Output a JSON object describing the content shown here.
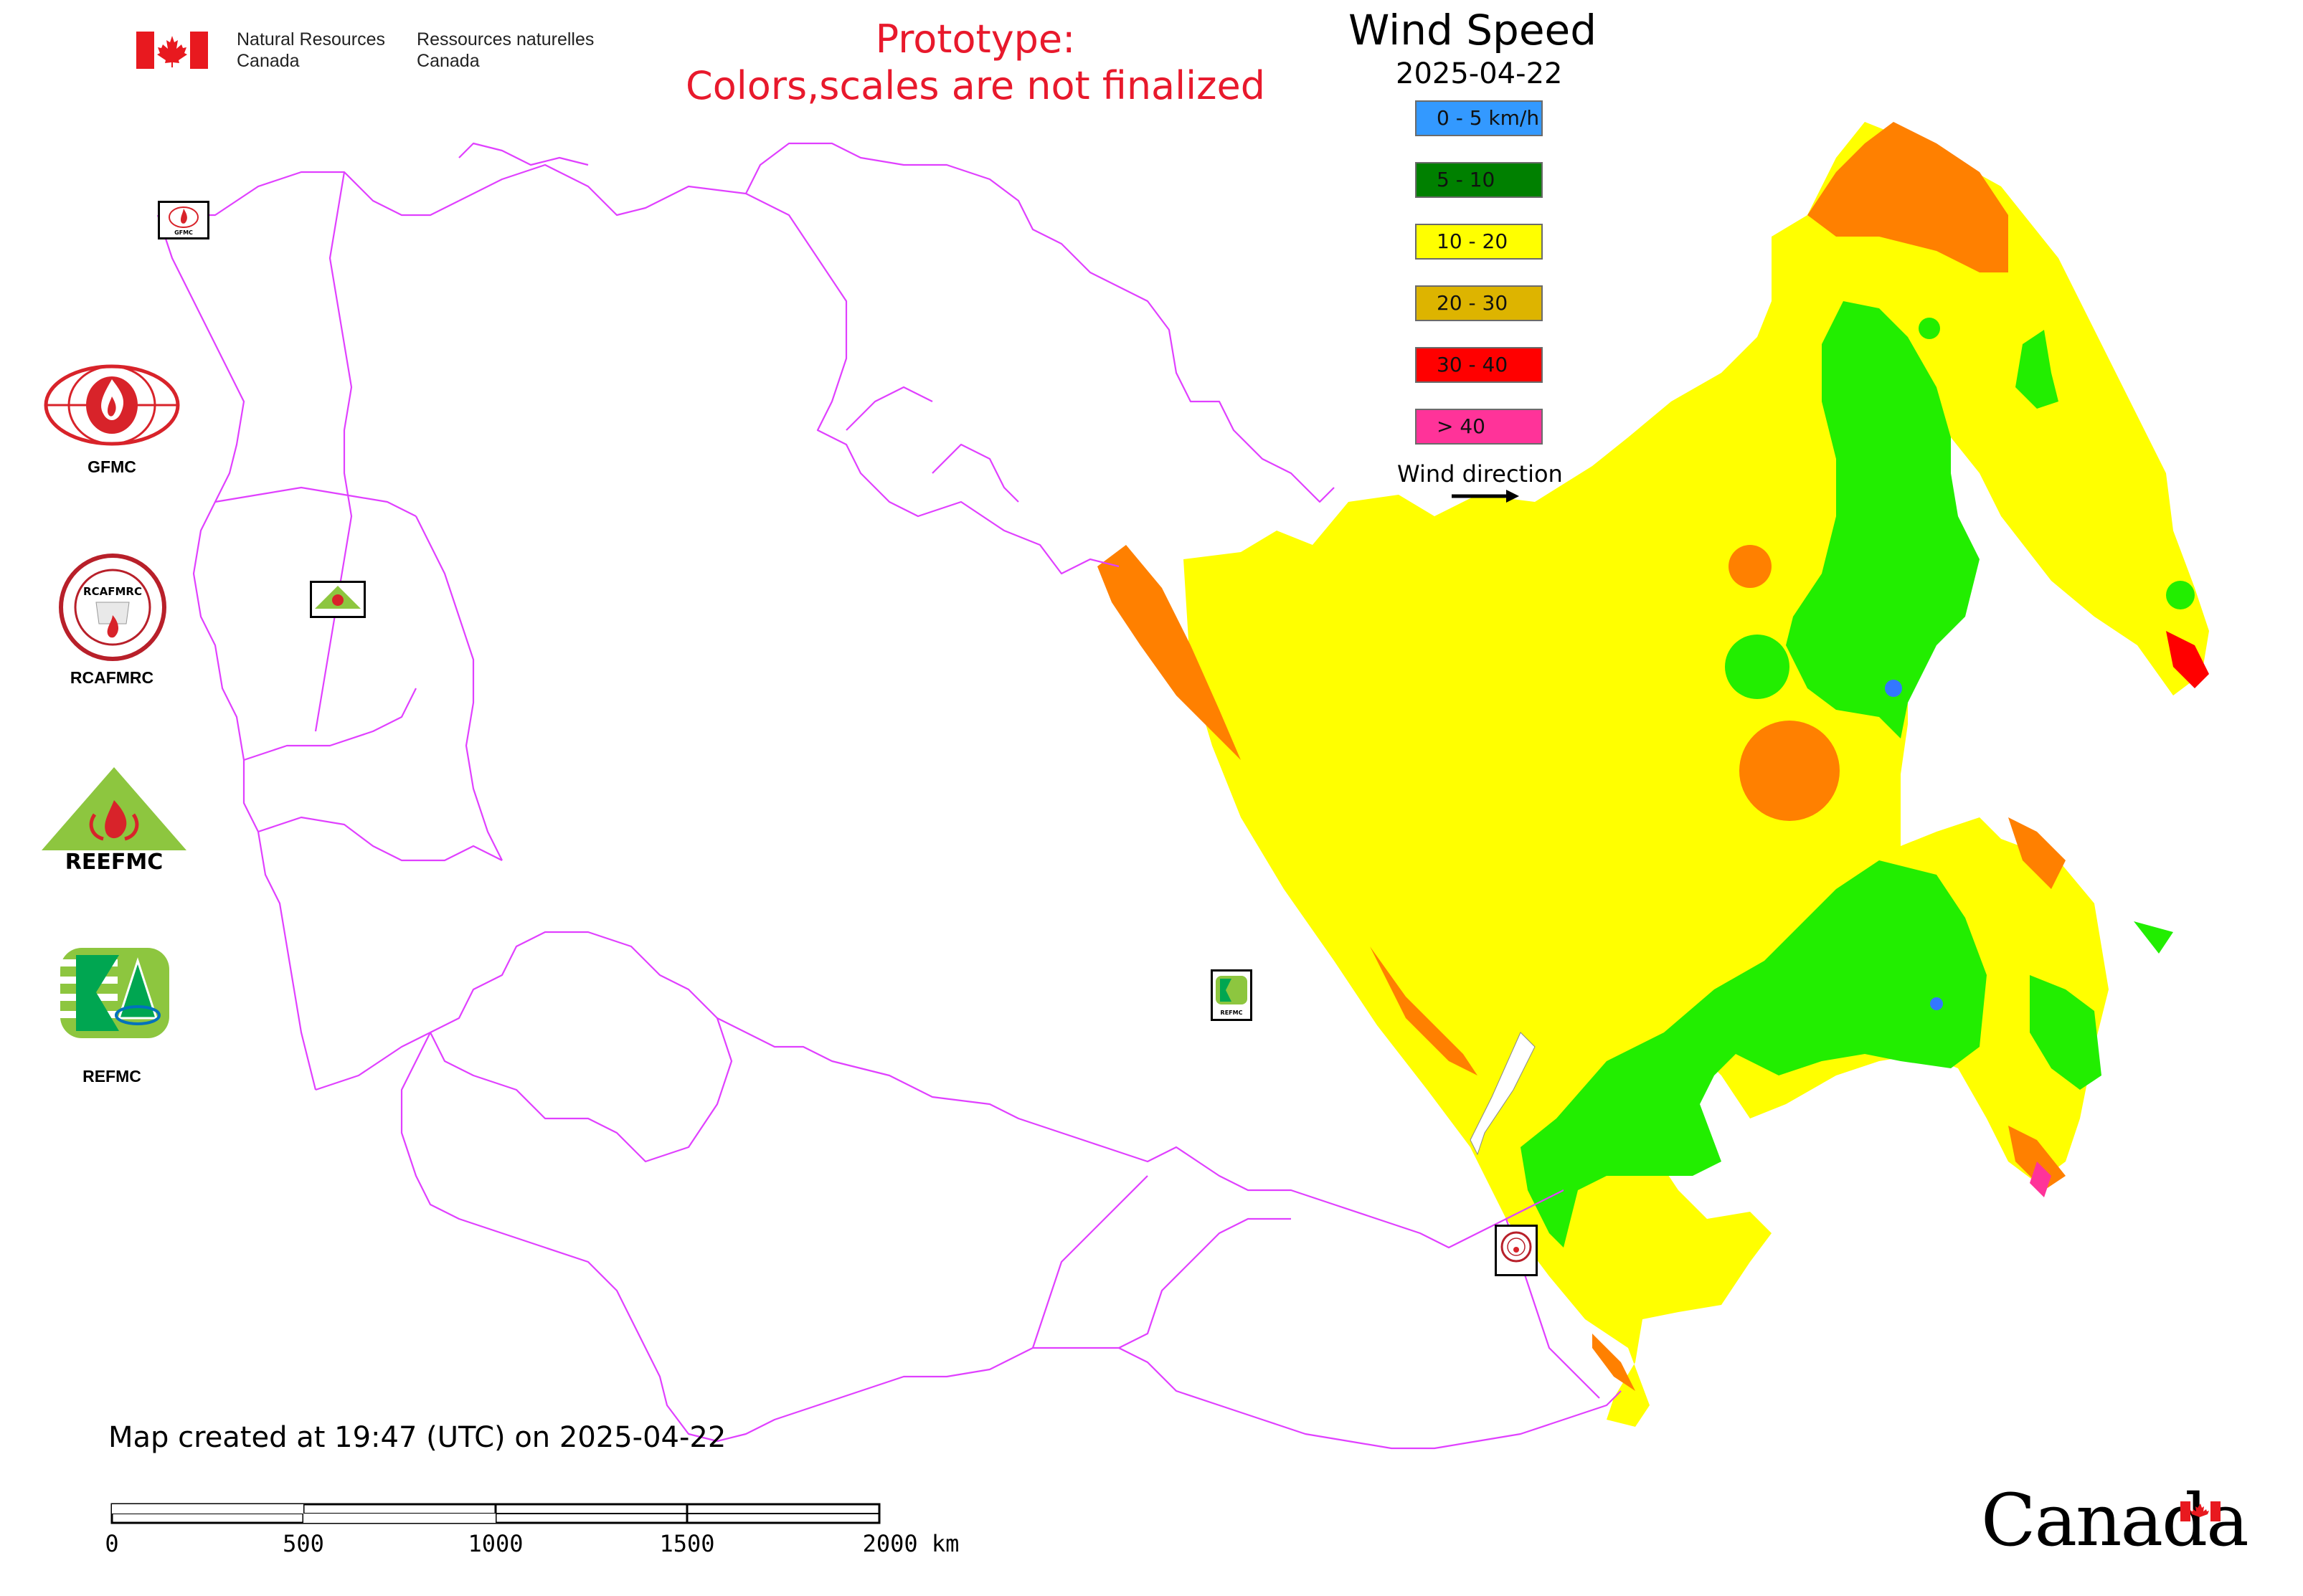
{
  "header": {
    "gov_name_en_line1": "Natural Resources",
    "gov_name_en_line2": "Canada",
    "gov_name_fr_line1": "Ressources naturelles",
    "gov_name_fr_line2": "Canada",
    "prototype_line1": "Prototype:",
    "prototype_line2": "Colors,scales are not finalized"
  },
  "legend": {
    "title": "Wind Speed",
    "date": "2025-04-22",
    "classes": [
      {
        "label": "0 - 5 km/h",
        "color": "#3399ff"
      },
      {
        "label": "5 - 10",
        "color": "#008000"
      },
      {
        "label": "10 - 20",
        "color": "#ffff00"
      },
      {
        "label": "20 - 30",
        "color": "#ddb400"
      },
      {
        "label": "30 - 40",
        "color": "#ff0000"
      },
      {
        "label": "> 40",
        "color": "#ff3399"
      }
    ],
    "wind_direction_label": "Wind direction"
  },
  "organizations": [
    {
      "label": "GFMC",
      "icon": "gfmc-logo"
    },
    {
      "label": "RCAFMRC",
      "icon": "rcafmrc-logo"
    },
    {
      "label": "",
      "icon": "reefmc-logo"
    },
    {
      "label": "REFMC",
      "icon": "refmc-logo"
    }
  ],
  "logo_text": {
    "gfmc_mini": "GFMC",
    "rcafmrc_ring": "RCAFMRC",
    "reefmc": "REEFMC",
    "refmc_mini": "REFMC"
  },
  "footer": {
    "created": "Map created at 19:47 (UTC) on 2025-04-22",
    "scale_ticks": [
      "0",
      "500",
      "1000",
      "1500",
      "2000 km"
    ],
    "wordmark": "Canada"
  },
  "colors": {
    "boundary": "#e040ff",
    "speed_5_10": "#22ee00",
    "speed_10_20": "#ffff00",
    "speed_20_30": "#ff8000",
    "speed_30_40": "#ff0000",
    "speed_0_5": "#3377ff"
  }
}
